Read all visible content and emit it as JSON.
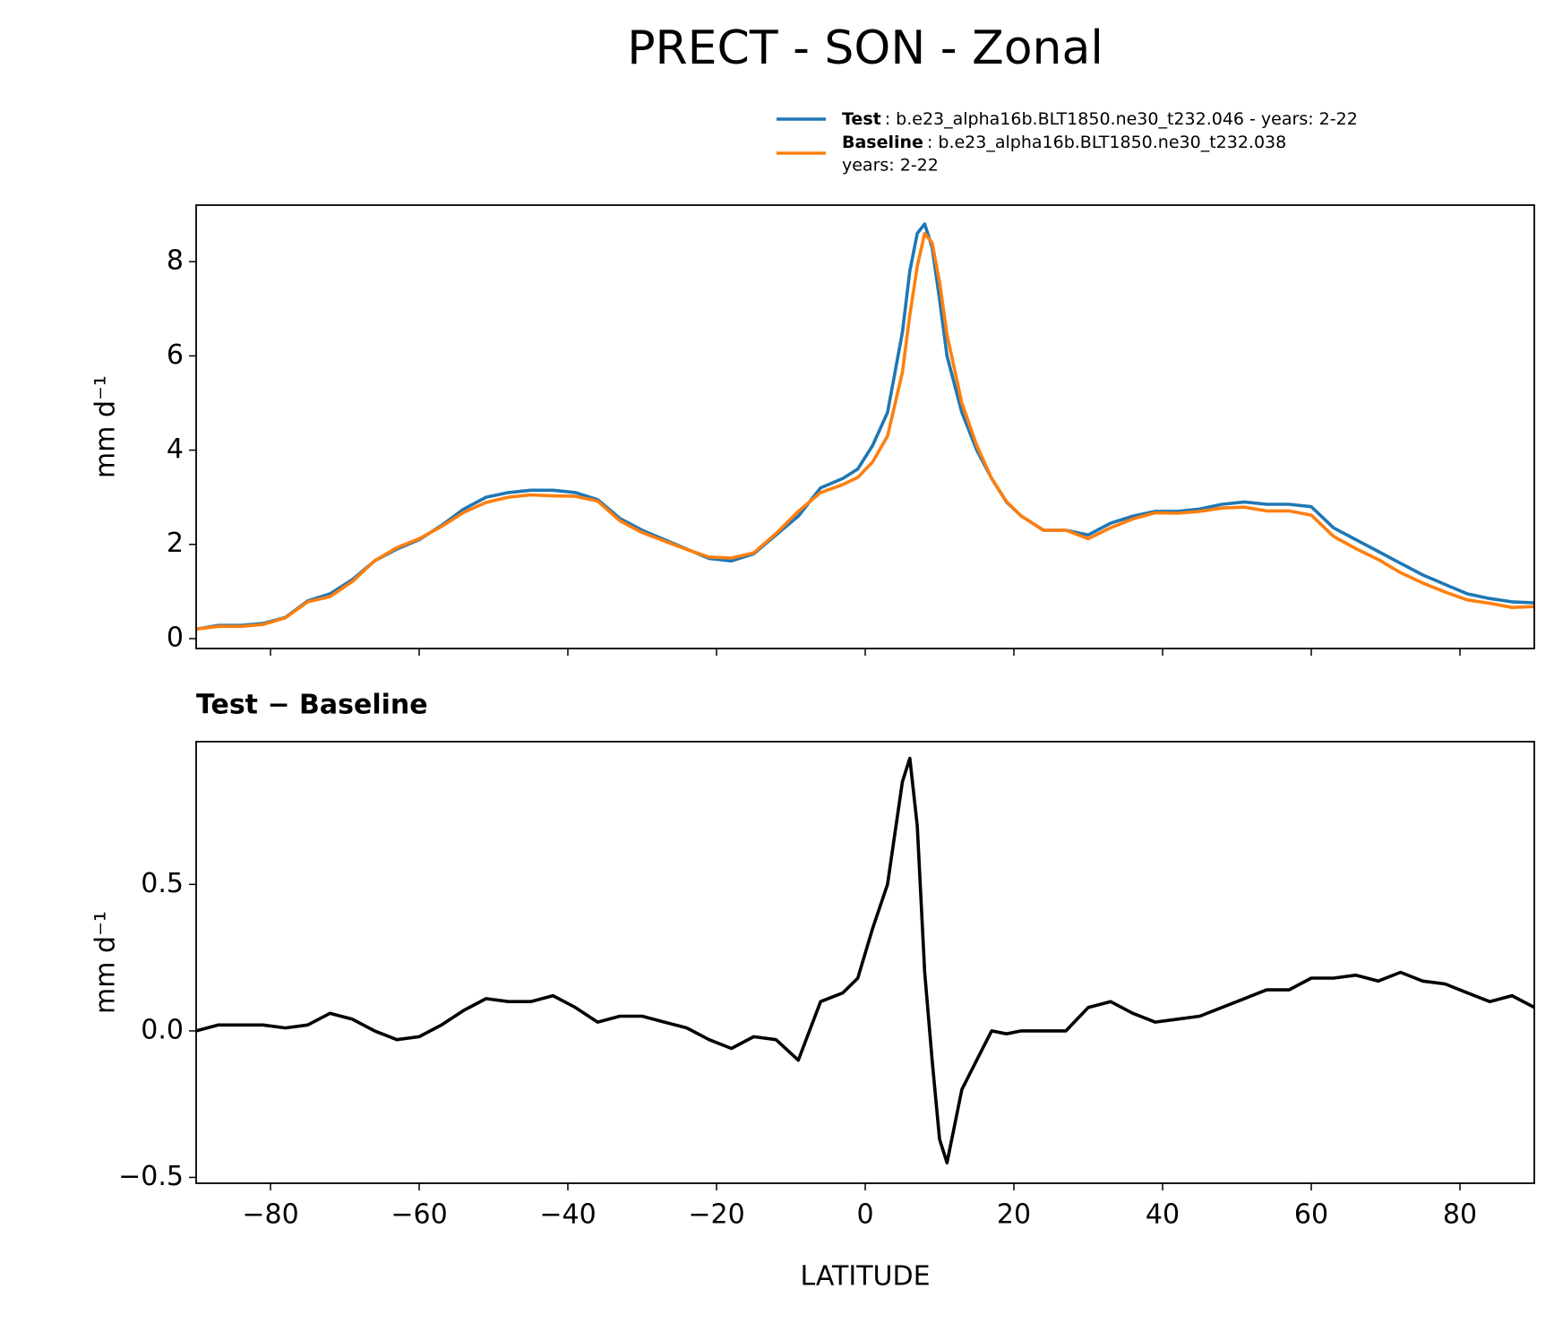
{
  "title": "PRECT - SON - Zonal",
  "chart_data": [
    {
      "type": "line",
      "ylabel": "mm d⁻¹",
      "x": [
        -90,
        -87,
        -84,
        -81,
        -78,
        -75,
        -72,
        -69,
        -66,
        -63,
        -60,
        -57,
        -54,
        -51,
        -48,
        -45,
        -42,
        -39,
        -36,
        -33,
        -30,
        -27,
        -24,
        -21,
        -18,
        -15,
        -12,
        -9,
        -6,
        -3,
        -1,
        1,
        3,
        5,
        6,
        7,
        8,
        9,
        10,
        11,
        13,
        15,
        17,
        19,
        21,
        24,
        27,
        30,
        33,
        36,
        39,
        42,
        45,
        48,
        51,
        54,
        57,
        60,
        63,
        66,
        69,
        72,
        75,
        78,
        81,
        84,
        87,
        90
      ],
      "series": [
        {
          "name": "Test",
          "label_lines": [
            ": b.e23_alpha16b.BLT1850.ne30_t232.046 - years: 2-22"
          ],
          "color": "#1f77b4",
          "values": [
            0.2,
            0.28,
            0.28,
            0.32,
            0.45,
            0.8,
            0.95,
            1.25,
            1.65,
            1.9,
            2.1,
            2.4,
            2.75,
            3.0,
            3.1,
            3.15,
            3.15,
            3.1,
            2.95,
            2.55,
            2.3,
            2.1,
            1.9,
            1.7,
            1.65,
            1.8,
            2.2,
            2.6,
            3.2,
            3.4,
            3.6,
            4.1,
            4.8,
            6.5,
            7.8,
            8.6,
            8.8,
            8.3,
            7.2,
            6.0,
            4.8,
            4.0,
            3.4,
            2.9,
            2.6,
            2.3,
            2.3,
            2.2,
            2.45,
            2.6,
            2.7,
            2.7,
            2.75,
            2.85,
            2.9,
            2.85,
            2.85,
            2.8,
            2.35,
            2.1,
            1.85,
            1.6,
            1.35,
            1.15,
            0.95,
            0.85,
            0.78,
            0.76
          ]
        },
        {
          "name": "Baseline",
          "label_lines": [
            ": b.e23_alpha16b.BLT1850.ne30_t232.038",
            "years: 2-22"
          ],
          "color": "#ff7f0e",
          "values": [
            0.2,
            0.26,
            0.26,
            0.3,
            0.44,
            0.78,
            0.89,
            1.21,
            1.65,
            1.93,
            2.12,
            2.38,
            2.68,
            2.89,
            3.0,
            3.05,
            3.03,
            3.02,
            2.92,
            2.5,
            2.25,
            2.07,
            1.89,
            1.73,
            1.71,
            1.82,
            2.23,
            2.7,
            3.1,
            3.27,
            3.42,
            3.75,
            4.3,
            5.65,
            6.87,
            7.9,
            8.6,
            8.4,
            7.57,
            6.45,
            5.0,
            4.1,
            3.4,
            2.91,
            2.6,
            2.3,
            2.3,
            2.12,
            2.35,
            2.54,
            2.67,
            2.66,
            2.7,
            2.77,
            2.79,
            2.71,
            2.71,
            2.62,
            2.17,
            1.91,
            1.68,
            1.4,
            1.18,
            0.99,
            0.82,
            0.75,
            0.66,
            0.68
          ]
        }
      ],
      "xlim": [
        -90,
        90
      ],
      "xticks": [
        -80,
        -60,
        -40,
        -20,
        0,
        20,
        40,
        60,
        80
      ],
      "ylim": [
        -0.21,
        9.2
      ],
      "yticks": [
        0,
        2,
        4,
        6,
        8
      ]
    },
    {
      "type": "line",
      "title": "Test − Baseline",
      "ylabel": "mm d⁻¹",
      "xlabel": "LATITUDE",
      "x": [
        -90,
        -87,
        -84,
        -81,
        -78,
        -75,
        -72,
        -69,
        -66,
        -63,
        -60,
        -57,
        -54,
        -51,
        -48,
        -45,
        -42,
        -39,
        -36,
        -33,
        -30,
        -27,
        -24,
        -21,
        -18,
        -15,
        -12,
        -9,
        -6,
        -3,
        -1,
        1,
        3,
        5,
        6,
        7,
        8,
        9,
        10,
        11,
        13,
        15,
        17,
        19,
        21,
        24,
        27,
        30,
        33,
        36,
        39,
        42,
        45,
        48,
        51,
        54,
        57,
        60,
        63,
        66,
        69,
        72,
        75,
        78,
        81,
        84,
        87,
        90
      ],
      "series": [
        {
          "color": "#000000",
          "values": [
            0,
            0.02,
            0.02,
            0.02,
            0.01,
            0.02,
            0.06,
            0.04,
            0.0,
            -0.03,
            -0.02,
            0.02,
            0.07,
            0.11,
            0.1,
            0.1,
            0.12,
            0.08,
            0.03,
            0.05,
            0.05,
            0.03,
            0.01,
            -0.03,
            -0.06,
            -0.02,
            -0.03,
            -0.1,
            0.1,
            0.13,
            0.18,
            0.35,
            0.5,
            0.85,
            0.93,
            0.7,
            0.2,
            -0.1,
            -0.37,
            -0.45,
            -0.2,
            -0.1,
            0.0,
            -0.01,
            0.0,
            0.0,
            0.0,
            0.08,
            0.1,
            0.06,
            0.03,
            0.04,
            0.05,
            0.08,
            0.11,
            0.14,
            0.14,
            0.18,
            0.18,
            0.19,
            0.17,
            0.2,
            0.17,
            0.16,
            0.13,
            0.1,
            0.12,
            0.08
          ]
        }
      ],
      "xlim": [
        -90,
        90
      ],
      "xticks": [
        {
          "value": -80,
          "label": "−80"
        },
        {
          "value": -60,
          "label": "−60"
        },
        {
          "value": -40,
          "label": "−40"
        },
        {
          "value": -20,
          "label": "−20"
        },
        0,
        20,
        40,
        60,
        80
      ],
      "ylim": [
        -0.52,
        0.987
      ],
      "yticks": [
        {
          "value": -0.5,
          "label": "−0.5"
        },
        {
          "value": 0,
          "label": "0.0"
        },
        {
          "value": 0.5,
          "label": "0.5"
        }
      ]
    }
  ]
}
